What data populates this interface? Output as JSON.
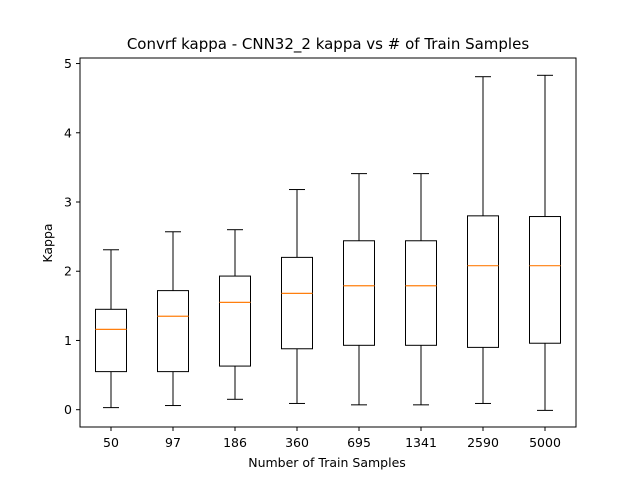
{
  "chart_data": {
    "type": "box",
    "title": "Convrf kappa - CNN32_2 kappa vs # of Train Samples",
    "xlabel": "Number of Train Samples",
    "ylabel": "Kappa",
    "categories": [
      "50",
      "97",
      "186",
      "360",
      "695",
      "1341",
      "2590",
      "5000"
    ],
    "ylim": [
      -0.25,
      5.08
    ],
    "yticks": [
      0,
      1,
      2,
      3,
      4,
      5
    ],
    "grid": false,
    "median_color": "#ff7f0e",
    "boxes": [
      {
        "whislo": 0.03,
        "q1": 0.55,
        "med": 1.16,
        "q3": 1.45,
        "whishi": 2.31
      },
      {
        "whislo": 0.06,
        "q1": 0.55,
        "med": 1.35,
        "q3": 1.72,
        "whishi": 2.57
      },
      {
        "whislo": 0.15,
        "q1": 0.63,
        "med": 1.55,
        "q3": 1.93,
        "whishi": 2.6
      },
      {
        "whislo": 0.09,
        "q1": 0.88,
        "med": 1.68,
        "q3": 2.2,
        "whishi": 3.18
      },
      {
        "whislo": 0.07,
        "q1": 0.93,
        "med": 1.79,
        "q3": 2.44,
        "whishi": 3.41
      },
      {
        "whislo": 0.07,
        "q1": 0.93,
        "med": 1.79,
        "q3": 2.44,
        "whishi": 3.41
      },
      {
        "whislo": 0.09,
        "q1": 0.9,
        "med": 2.08,
        "q3": 2.8,
        "whishi": 4.81
      },
      {
        "whislo": -0.01,
        "q1": 0.96,
        "med": 2.08,
        "q3": 2.79,
        "whishi": 4.83
      }
    ]
  }
}
